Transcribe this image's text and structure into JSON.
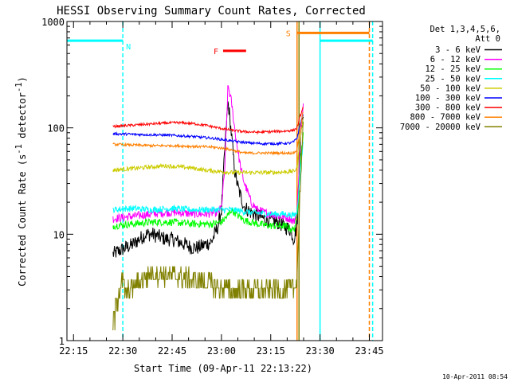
{
  "chart_data": {
    "type": "line",
    "title": "HESSI Observing Summary Count Rates, Corrected",
    "xlabel": "Start Time (09-Apr-11 22:13:22)",
    "ylabel_main": "Corrected Count Rate (s",
    "ylabel_mid": " detector",
    "ylabel_end": ")",
    "ylabel_sup": "-1",
    "x_tick_labels": [
      "22:15",
      "22:30",
      "22:45",
      "23:00",
      "23:15",
      "23:30",
      "23:45"
    ],
    "x_tick_minutes": [
      2,
      17,
      32,
      47,
      62,
      77,
      92
    ],
    "xlim_minutes": [
      0,
      96
    ],
    "y_scale": "log",
    "ylim": [
      1,
      1000
    ],
    "y_tick_labels": [
      "1",
      "10",
      "100",
      "1000"
    ],
    "y_tick_values": [
      1,
      10,
      100,
      1000
    ],
    "legend_title": [
      "Det 1,3,4,5,6,",
      "Att 0"
    ],
    "legend_position": "right",
    "series": [
      {
        "name": "3 - 6 keV",
        "color": "#000000",
        "x": [
          14,
          16,
          18,
          20,
          22,
          24,
          26,
          28,
          30,
          32,
          34,
          36,
          38,
          40,
          42,
          44,
          46,
          47,
          48,
          49,
          50,
          51,
          52,
          53,
          54,
          56,
          58,
          60,
          62,
          64,
          66,
          68,
          69,
          70,
          71,
          72
        ],
        "y": [
          6.5,
          7,
          7.5,
          8,
          9,
          10,
          10,
          9.5,
          9,
          9,
          8.5,
          8,
          7.5,
          7.5,
          8,
          8.5,
          12,
          17,
          60,
          180,
          90,
          40,
          28,
          22,
          18,
          16,
          15,
          14,
          13.5,
          13,
          12,
          11,
          9,
          12,
          70,
          150
        ]
      },
      {
        "name": "6 - 12 keV",
        "color": "#ff00ff",
        "x": [
          14,
          18,
          22,
          26,
          30,
          34,
          38,
          42,
          46,
          47,
          48,
          49,
          50,
          51,
          52,
          53,
          54,
          55,
          56,
          58,
          60,
          62,
          64,
          66,
          68,
          69,
          70,
          71,
          72
        ],
        "y": [
          14,
          14.5,
          15,
          15.5,
          16,
          16,
          15.5,
          15.5,
          16,
          18,
          40,
          250,
          180,
          100,
          60,
          40,
          30,
          25,
          20,
          17,
          16,
          15.5,
          15,
          14.5,
          14,
          13,
          16,
          80,
          170
        ]
      },
      {
        "name": "12 - 25 keV",
        "color": "#00ff00",
        "x": [
          14,
          20,
          26,
          32,
          38,
          44,
          47,
          48,
          49,
          50,
          51,
          52,
          54,
          58,
          62,
          66,
          69,
          70,
          71,
          72
        ],
        "y": [
          12,
          12.5,
          13,
          13,
          12.5,
          12.5,
          13,
          14,
          15,
          17,
          16,
          15,
          13.5,
          12.5,
          12,
          12,
          11,
          14,
          50,
          90
        ]
      },
      {
        "name": "25 - 50 keV",
        "color": "#00ffff",
        "x": [
          14,
          20,
          26,
          32,
          38,
          44,
          50,
          56,
          62,
          66,
          69,
          70,
          71,
          72
        ],
        "y": [
          17,
          17.5,
          17,
          17.5,
          17,
          17,
          17,
          16,
          15.5,
          15.5,
          15,
          16,
          40,
          80
        ]
      },
      {
        "name": "50 - 100 keV",
        "color": "#cccc00",
        "x": [
          14,
          18,
          22,
          26,
          30,
          34,
          38,
          42,
          46,
          50,
          54,
          58,
          62,
          66,
          69,
          70,
          71,
          72
        ],
        "y": [
          40,
          41,
          42,
          43,
          44,
          43,
          42,
          40,
          39,
          38,
          38,
          38,
          38,
          38.5,
          39,
          42,
          80,
          130
        ]
      },
      {
        "name": "100 - 300 keV",
        "color": "#0000ff",
        "x": [
          14,
          20,
          26,
          32,
          38,
          44,
          48,
          52,
          56,
          60,
          64,
          68,
          69,
          70,
          71,
          72
        ],
        "y": [
          88,
          87,
          86,
          85,
          83,
          80,
          77,
          74,
          72,
          71,
          71,
          72,
          74,
          80,
          110,
          140
        ]
      },
      {
        "name": "300 - 800 keV",
        "color": "#ff0000",
        "x": [
          14,
          18,
          22,
          26,
          30,
          34,
          38,
          42,
          46,
          50,
          54,
          58,
          62,
          66,
          69,
          70,
          71,
          72
        ],
        "y": [
          103,
          105,
          107,
          109,
          111,
          112,
          110,
          106,
          100,
          95,
          92,
          91,
          92,
          93,
          95,
          100,
          130,
          160
        ]
      },
      {
        "name": "800 - 7000 keV",
        "color": "#ff8000",
        "x": [
          14,
          20,
          26,
          32,
          38,
          44,
          48,
          50,
          52,
          54,
          56,
          58,
          62,
          66,
          69,
          70,
          71,
          72
        ],
        "y": [
          70,
          69,
          68,
          68,
          67,
          66,
          64,
          62,
          60,
          58,
          58,
          58,
          58,
          58,
          58,
          62,
          100,
          150
        ]
      },
      {
        "name": "7000 - 20000 keV",
        "color": "#808000",
        "x": [
          14,
          15,
          16,
          17,
          18,
          20,
          22,
          24,
          26,
          28,
          30,
          32,
          34,
          36,
          38,
          40,
          42,
          44,
          46,
          48,
          50,
          52,
          54,
          56,
          58,
          60,
          62,
          64,
          66,
          68,
          69,
          70,
          71,
          72
        ],
        "y": [
          1.3,
          2.2,
          3,
          3.6,
          2.8,
          3.2,
          3.6,
          4,
          4.3,
          4.3,
          4.2,
          4.1,
          4,
          3.9,
          3.7,
          3.6,
          3.5,
          3.4,
          3.2,
          3.1,
          3,
          3,
          3,
          3,
          3,
          3,
          3,
          3,
          3,
          3,
          3,
          4,
          30,
          110
        ]
      }
    ],
    "attenuator_bars": [
      {
        "label": "N",
        "color": "#00ffff",
        "x_start": 0,
        "x_end": 17,
        "level": 660
      },
      {
        "label": "",
        "color": "#00ffff",
        "x_start": 77,
        "x_end": 93,
        "level": 660
      },
      {
        "label": "S",
        "color": "#ff8000",
        "x_start": 70,
        "x_end": 92,
        "level": 780
      }
    ],
    "flare_bar": {
      "label": "F",
      "color": "#ff0000",
      "x_start": 47.5,
      "x_end": 54.5,
      "level": 530
    },
    "vertical_markers": [
      {
        "x": 17,
        "color": "#00ffff",
        "style": "dashed"
      },
      {
        "x": 70,
        "color": "#ff8000",
        "style": "solid"
      },
      {
        "x": 70.6,
        "color": "#808000",
        "style": "solid"
      },
      {
        "x": 77,
        "color": "#00ffff",
        "style": "solid"
      },
      {
        "x": 92,
        "color": "#ff8000",
        "style": "dashed"
      },
      {
        "x": 93,
        "color": "#00ffff",
        "style": "dashed"
      }
    ],
    "grid": false
  },
  "timestamp": "10-Apr-2011 08:54"
}
